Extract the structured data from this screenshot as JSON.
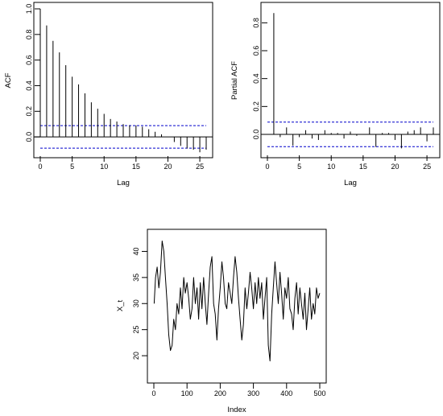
{
  "chart_data": [
    {
      "type": "bar",
      "subtype": "acf-correlogram",
      "xlabel": "Lag",
      "ylabel": "ACF",
      "xlim": [
        0,
        26
      ],
      "ylim": [
        -0.15,
        1.0
      ],
      "x_ticks": [
        "0",
        "5",
        "10",
        "15",
        "20",
        "25"
      ],
      "y_ticks": [
        "0.0",
        "0.2",
        "0.4",
        "0.6",
        "0.8",
        "1.0"
      ],
      "confidence_band": [
        0.088,
        -0.088
      ],
      "band_color": "#0000cc",
      "lags": [
        0,
        1,
        2,
        3,
        4,
        5,
        6,
        7,
        8,
        9,
        10,
        11,
        12,
        13,
        14,
        15,
        16,
        17,
        18,
        19,
        20,
        21,
        22,
        23,
        24,
        25,
        26
      ],
      "values": [
        1.0,
        0.87,
        0.75,
        0.66,
        0.56,
        0.47,
        0.41,
        0.34,
        0.27,
        0.22,
        0.18,
        0.14,
        0.12,
        0.1,
        0.09,
        0.09,
        0.08,
        0.06,
        0.04,
        0.02,
        0.0,
        -0.04,
        -0.07,
        -0.09,
        -0.1,
        -0.12,
        -0.1
      ]
    },
    {
      "type": "bar",
      "subtype": "pacf-correlogram",
      "xlabel": "Lag",
      "ylabel": "Partial ACF",
      "xlim": [
        0,
        26
      ],
      "ylim": [
        -0.15,
        0.9
      ],
      "x_ticks": [
        "0",
        "5",
        "10",
        "15",
        "20",
        "25"
      ],
      "y_ticks": [
        "0.0",
        "0.2",
        "0.4",
        "0.6",
        "0.8"
      ],
      "confidence_band": [
        0.088,
        -0.088
      ],
      "band_color": "#0000cc",
      "lags": [
        1,
        2,
        3,
        4,
        5,
        6,
        7,
        8,
        9,
        10,
        11,
        12,
        13,
        14,
        15,
        16,
        17,
        18,
        19,
        20,
        21,
        22,
        23,
        24,
        25,
        26
      ],
      "values": [
        0.87,
        -0.02,
        0.05,
        -0.08,
        -0.02,
        0.03,
        -0.03,
        -0.04,
        0.03,
        0.01,
        0.01,
        -0.03,
        0.02,
        -0.01,
        0.0,
        0.05,
        -0.09,
        0.01,
        0.01,
        -0.04,
        -0.1,
        0.02,
        0.03,
        0.05,
        -0.05,
        0.05
      ]
    },
    {
      "type": "line",
      "xlabel": "Index",
      "ylabel": "X_t",
      "xlim": [
        0,
        500
      ],
      "ylim": [
        16,
        43
      ],
      "x_ticks": [
        "0",
        "100",
        "200",
        "300",
        "400",
        "500"
      ],
      "y_ticks": [
        "20",
        "25",
        "30",
        "35",
        "40"
      ],
      "line_color": "#000000",
      "x": [
        1,
        5,
        10,
        15,
        20,
        25,
        30,
        35,
        40,
        45,
        50,
        55,
        60,
        65,
        70,
        75,
        80,
        85,
        90,
        95,
        100,
        105,
        110,
        115,
        120,
        125,
        130,
        135,
        140,
        145,
        150,
        155,
        160,
        165,
        170,
        175,
        180,
        185,
        190,
        195,
        200,
        205,
        210,
        215,
        220,
        225,
        230,
        235,
        240,
        245,
        250,
        255,
        260,
        265,
        270,
        275,
        280,
        285,
        290,
        295,
        300,
        305,
        310,
        315,
        320,
        325,
        330,
        335,
        340,
        345,
        350,
        355,
        360,
        365,
        370,
        375,
        380,
        385,
        390,
        395,
        400,
        405,
        410,
        415,
        420,
        425,
        430,
        435,
        440,
        445,
        450,
        455,
        460,
        465,
        470,
        475,
        480,
        485,
        490,
        495,
        500
      ],
      "values": [
        30,
        35,
        37,
        33,
        36,
        42,
        40,
        35,
        30,
        24,
        21,
        22,
        27,
        25,
        30,
        28,
        33,
        29,
        35,
        32,
        34,
        31,
        27,
        29,
        35,
        30,
        33,
        27,
        34,
        29,
        35,
        30,
        26,
        32,
        37,
        39,
        30,
        28,
        23,
        29,
        33,
        38,
        35,
        30,
        29,
        34,
        32,
        30,
        35,
        39,
        36,
        31,
        27,
        23,
        26,
        33,
        29,
        32,
        36,
        33,
        29,
        34,
        30,
        35,
        31,
        34,
        27,
        31,
        35,
        22,
        19,
        28,
        33,
        38,
        34,
        30,
        36,
        32,
        27,
        33,
        31,
        35,
        29,
        28,
        25,
        31,
        34,
        28,
        33,
        30,
        27,
        32,
        25,
        29,
        33,
        27,
        30,
        28,
        33,
        31,
        32
      ]
    }
  ]
}
